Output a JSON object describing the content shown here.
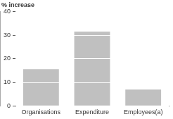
{
  "chart_data": {
    "type": "bar",
    "ylabel": "% increase",
    "categories": [
      "Organisations",
      "Expenditure",
      "Employees(a)"
    ],
    "values": [
      15.5,
      31.5,
      7
    ],
    "color": "#c0c0c0",
    "ylim": [
      0,
      40
    ],
    "yticks": [
      0,
      10,
      20,
      30,
      40
    ],
    "grid": true
  }
}
